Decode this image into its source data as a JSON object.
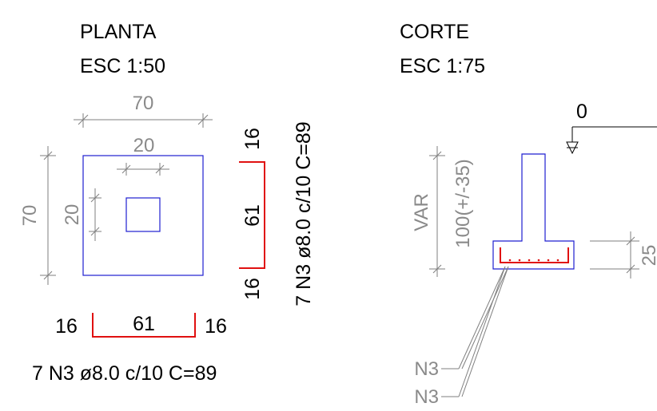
{
  "planta": {
    "title": "PLANTA",
    "scale": "ESC 1:50",
    "dim_outer_top": "70",
    "dim_inner_top": "20",
    "dim_outer_left": "70",
    "dim_inner_left": "20",
    "bar_h": {
      "left": "16",
      "mid": "61",
      "right": "16"
    },
    "bar_v": {
      "top": "16",
      "mid": "61",
      "bottom": "16"
    },
    "rebar_label_h": "7 N3 ø8.0 c/10 C=89",
    "rebar_label_v": "7 N3 ø8.0 c/10 C=89"
  },
  "corte": {
    "title": "CORTE",
    "scale": "ESC 1:75",
    "level": "0",
    "var_label": "VAR",
    "depth_label": "100(+/-35)",
    "height_label": "25",
    "callout_1": "N3",
    "callout_2": "N3"
  },
  "colors": {
    "outline": "#1f1fd0",
    "rebar": "#e01010",
    "dimension": "#7f7f7f"
  }
}
